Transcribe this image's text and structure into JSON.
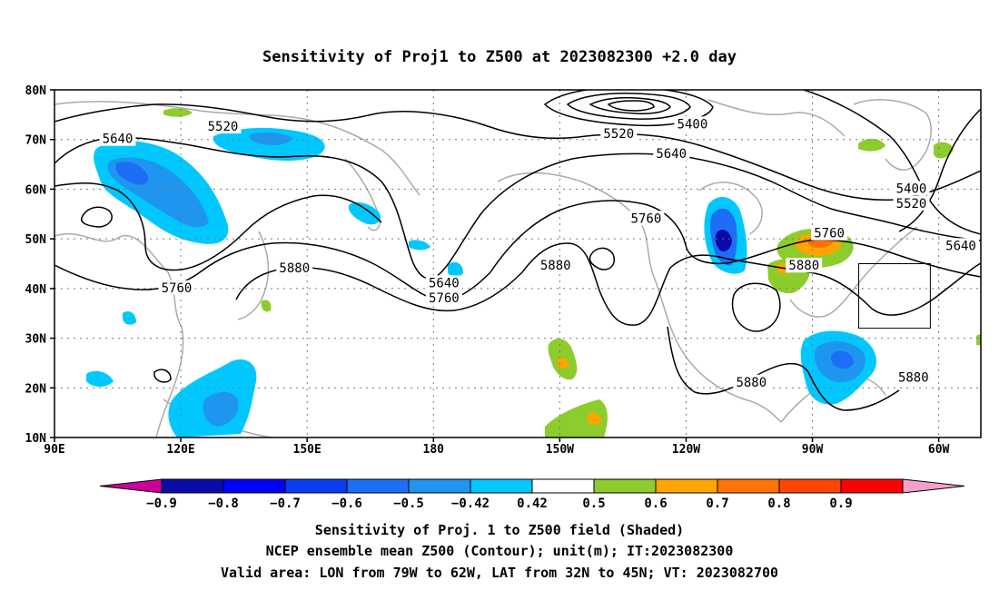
{
  "title": "Sensitivity of Proj1 to Z500 at 2023082300 +2.0 day",
  "map": {
    "lon_range": [
      90,
      310
    ],
    "lat_range": [
      10,
      80
    ],
    "lon_ticks": [
      {
        "lon": 90,
        "label": "90E"
      },
      {
        "lon": 120,
        "label": "120E"
      },
      {
        "lon": 150,
        "label": "150E"
      },
      {
        "lon": 180,
        "label": "180"
      },
      {
        "lon": 210,
        "label": "150W"
      },
      {
        "lon": 240,
        "label": "120W"
      },
      {
        "lon": 270,
        "label": "90W"
      },
      {
        "lon": 300,
        "label": "60W"
      }
    ],
    "lat_ticks": [
      {
        "lat": 10,
        "label": "10N"
      },
      {
        "lat": 20,
        "label": "20N"
      },
      {
        "lat": 30,
        "label": "30N"
      },
      {
        "lat": 40,
        "label": "40N"
      },
      {
        "lat": 50,
        "label": "50N"
      },
      {
        "lat": 60,
        "label": "60N"
      },
      {
        "lat": 70,
        "label": "70N"
      },
      {
        "lat": 80,
        "label": "80N"
      }
    ],
    "gridlines": true,
    "valid_box": {
      "lon_min": 281,
      "lon_max": 298,
      "lat_min": 32,
      "lat_max": 45
    },
    "contour_labels": [
      {
        "text": "5520",
        "lon": 130,
        "lat": 72.5
      },
      {
        "text": "5640",
        "lon": 105,
        "lat": 70
      },
      {
        "text": "5760",
        "lon": 119,
        "lat": 40
      },
      {
        "text": "5880",
        "lon": 147,
        "lat": 44
      },
      {
        "text": "5640",
        "lon": 182.5,
        "lat": 41
      },
      {
        "text": "5760",
        "lon": 182.5,
        "lat": 38
      },
      {
        "text": "5880",
        "lon": 209,
        "lat": 44.5
      },
      {
        "text": "5760",
        "lon": 230.5,
        "lat": 54
      },
      {
        "text": "5520",
        "lon": 224,
        "lat": 71
      },
      {
        "text": "5400",
        "lon": 241.5,
        "lat": 73
      },
      {
        "text": "5640",
        "lon": 236.5,
        "lat": 67
      },
      {
        "text": "5760",
        "lon": 274,
        "lat": 51
      },
      {
        "text": "5880",
        "lon": 268,
        "lat": 44.5
      },
      {
        "text": "5400",
        "lon": 293.5,
        "lat": 60
      },
      {
        "text": "5520",
        "lon": 293.5,
        "lat": 57
      },
      {
        "text": "5640",
        "lon": 310,
        "lat": 48.5
      },
      {
        "text": "5880",
        "lon": 255.5,
        "lat": 21
      },
      {
        "text": "5880",
        "lon": 294,
        "lat": 22
      }
    ]
  },
  "colorbar": {
    "labels": [
      "−0.9",
      "−0.8",
      "−0.7",
      "−0.6",
      "−0.5",
      "−0.42",
      "0.42",
      "0.5",
      "0.6",
      "0.7",
      "0.8",
      "0.9"
    ],
    "colors": [
      "#cc0099",
      "#0a0aa8",
      "#0000ff",
      "#0a3cf0",
      "#1e6ef5",
      "#1e96f0",
      "#00c8ff",
      "#ffffff",
      "#8ccc2c",
      "#ffa500",
      "#ff7300",
      "#ff4500",
      "#ff0000",
      "#f5a0c8"
    ]
  },
  "caption": {
    "line1": "Sensitivity of Proj. 1 to Z500 field (Shaded)",
    "line2": "NCEP ensemble mean Z500 (Contour); unit(m); IT:2023082300",
    "line3": "Valid area: LON from 79W to 62W, LAT from 32N to 45N; VT: 2023082700"
  }
}
